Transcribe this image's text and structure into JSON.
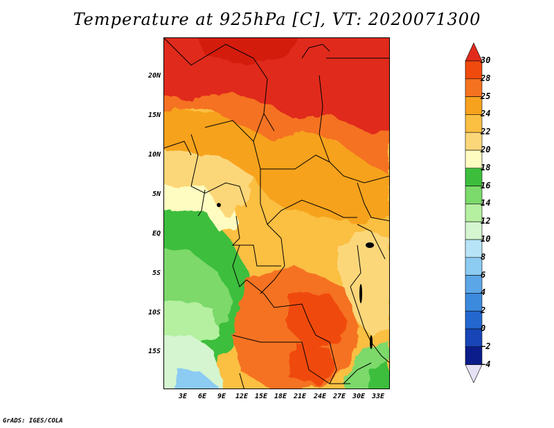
{
  "title": "Temperature at 925hPa [C], VT: 2020071300",
  "footer": "GrADS: IGES/COLA",
  "map": {
    "lat_labels": [
      "20N",
      "15N",
      "10N",
      "5N",
      "EQ",
      "5S",
      "10S",
      "15S"
    ],
    "lon_labels": [
      "3E",
      "6E",
      "9E",
      "12E",
      "15E",
      "18E",
      "21E",
      "24E",
      "27E",
      "30E",
      "33E"
    ],
    "lon_range": [
      0.5,
      35
    ],
    "lat_range": [
      -20,
      24.5
    ]
  },
  "colorbar": {
    "labels": [
      "30",
      "28",
      "25",
      "24",
      "22",
      "20",
      "18",
      "16",
      "14",
      "12",
      "10",
      "8",
      "6",
      "4",
      "2",
      "0",
      "−2",
      "−4"
    ],
    "colors": [
      "#e02a1c",
      "#f04a0e",
      "#f57220",
      "#f6a21e",
      "#fbbf42",
      "#fcd77a",
      "#fefcc0",
      "#3cbe3c",
      "#7cd96b",
      "#b4f0a0",
      "#d4f5d0",
      "#b7e4f7",
      "#8ccbf2",
      "#5ba6e7",
      "#3c8ade",
      "#2467cf",
      "#1845b7",
      "#0b1d8a",
      "#e7e1f6"
    ]
  }
}
